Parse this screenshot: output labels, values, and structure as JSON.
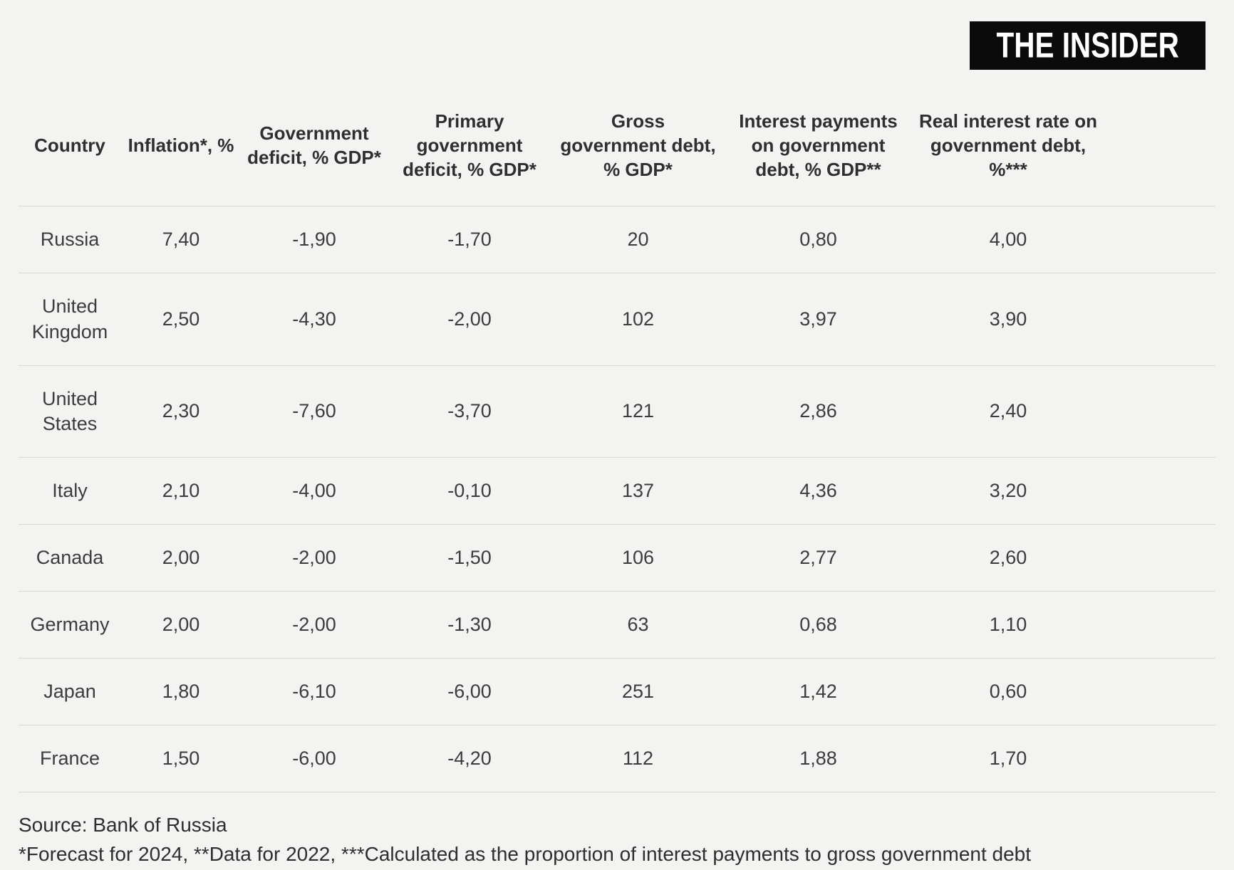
{
  "brand": {
    "logo_text": "THE INSIDER",
    "logo_bg": "#0b0b0b",
    "logo_fg": "#ffffff"
  },
  "table": {
    "columns": [
      "Country",
      "Inflation*, %",
      "Government deficit, % GDP*",
      "Primary government deficit, % GDP*",
      "Gross government debt, % GDP*",
      "Interest payments on government debt, % GDP**",
      "Real interest rate on government debt, %***"
    ],
    "rows": [
      {
        "country": "Russia",
        "values": [
          "7,40",
          "-1,90",
          "-1,70",
          "20",
          "0,80",
          "4,00"
        ]
      },
      {
        "country": "United Kingdom",
        "values": [
          "2,50",
          "-4,30",
          "-2,00",
          "102",
          "3,97",
          "3,90"
        ]
      },
      {
        "country": "United States",
        "values": [
          "2,30",
          "-7,60",
          "-3,70",
          "121",
          "2,86",
          "2,40"
        ]
      },
      {
        "country": "Italy",
        "values": [
          "2,10",
          "-4,00",
          "-0,10",
          "137",
          "4,36",
          "3,20"
        ]
      },
      {
        "country": "Canada",
        "values": [
          "2,00",
          "-2,00",
          "-1,50",
          "106",
          "2,77",
          "2,60"
        ]
      },
      {
        "country": "Germany",
        "values": [
          "2,00",
          "-2,00",
          "-1,30",
          "63",
          "0,68",
          "1,10"
        ]
      },
      {
        "country": "Japan",
        "values": [
          "1,80",
          "-6,10",
          "-6,00",
          "251",
          "1,42",
          "0,60"
        ]
      },
      {
        "country": "France",
        "values": [
          "1,50",
          "-6,00",
          "-4,20",
          "112",
          "1,88",
          "1,70"
        ]
      }
    ]
  },
  "footer": {
    "source": "Source: Bank of Russia",
    "notes": "*Forecast for 2024, **Data for 2022, ***Calculated as the proportion of interest payments to gross government debt"
  },
  "colors": {
    "background": "#f3f3f1",
    "divider": "#d9d9d7",
    "header_text": "#2f2f2f",
    "cell_text": "#3c3c3c"
  },
  "chart_data": {
    "type": "table",
    "title": "",
    "columns": [
      "Country",
      "Inflation*, %",
      "Government deficit, % GDP*",
      "Primary government deficit, % GDP*",
      "Gross government debt, % GDP*",
      "Interest payments on government debt, % GDP**",
      "Real interest rate on government debt, %***"
    ],
    "rows": [
      [
        "Russia",
        7.4,
        -1.9,
        -1.7,
        20,
        0.8,
        4.0
      ],
      [
        "United Kingdom",
        2.5,
        -4.3,
        -2.0,
        102,
        3.97,
        3.9
      ],
      [
        "United States",
        2.3,
        -7.6,
        -3.7,
        121,
        2.86,
        2.4
      ],
      [
        "Italy",
        2.1,
        -4.0,
        -0.1,
        137,
        4.36,
        3.2
      ],
      [
        "Canada",
        2.0,
        -2.0,
        -1.5,
        106,
        2.77,
        2.6
      ],
      [
        "Germany",
        2.0,
        -2.0,
        -1.3,
        63,
        0.68,
        1.1
      ],
      [
        "Japan",
        1.8,
        -6.1,
        -6.0,
        251,
        1.42,
        0.6
      ],
      [
        "France",
        1.5,
        -6.0,
        -4.2,
        112,
        1.88,
        1.7
      ]
    ],
    "source": "Bank of Russia",
    "notes": "*Forecast for 2024, **Data for 2022, ***Calculated as the proportion of interest payments to gross government debt"
  }
}
